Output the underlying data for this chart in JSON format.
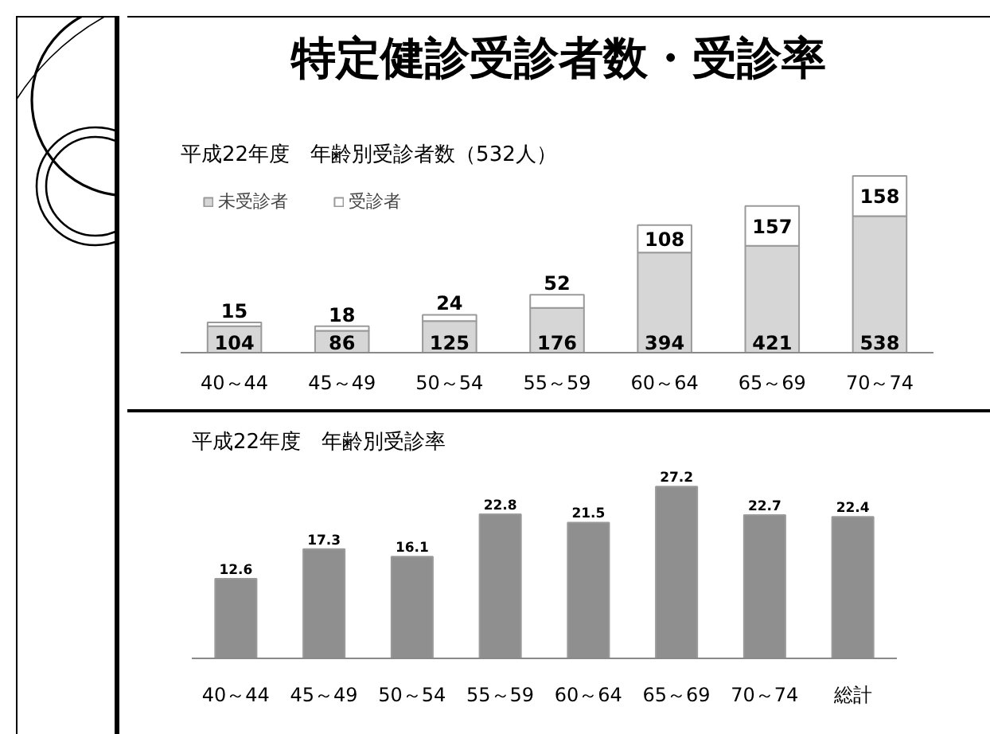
{
  "chart_data": [
    {
      "type": "bar",
      "title": "特定健診受診者数・受診率",
      "subtitle": "平成22年度　年齢別受診者数（532人）",
      "categories": [
        "40～44",
        "45～49",
        "50～54",
        "55～59",
        "60～64",
        "65～69",
        "70～74"
      ],
      "stacked": true,
      "series": [
        {
          "name": "未受診者",
          "color": "#d6d6d6",
          "values": [
            104,
            86,
            125,
            176,
            394,
            421,
            538
          ]
        },
        {
          "name": "受診者",
          "color": "#ffffff",
          "values": [
            15,
            18,
            24,
            52,
            108,
            157,
            158
          ]
        }
      ],
      "data_labels": true,
      "legend": "top left",
      "tick_labels": "x"
    },
    {
      "type": "bar",
      "title": "平成22年度　年齢別受診率",
      "categories": [
        "40～44",
        "45～49",
        "50～54",
        "55～59",
        "60～64",
        "65～69",
        "70～74",
        "総計"
      ],
      "values": [
        12.6,
        17.3,
        16.1,
        22.8,
        21.5,
        27.2,
        22.7,
        22.4
      ],
      "color": "#8f8f8f",
      "data_labels": true,
      "tick_labels": "x"
    }
  ]
}
